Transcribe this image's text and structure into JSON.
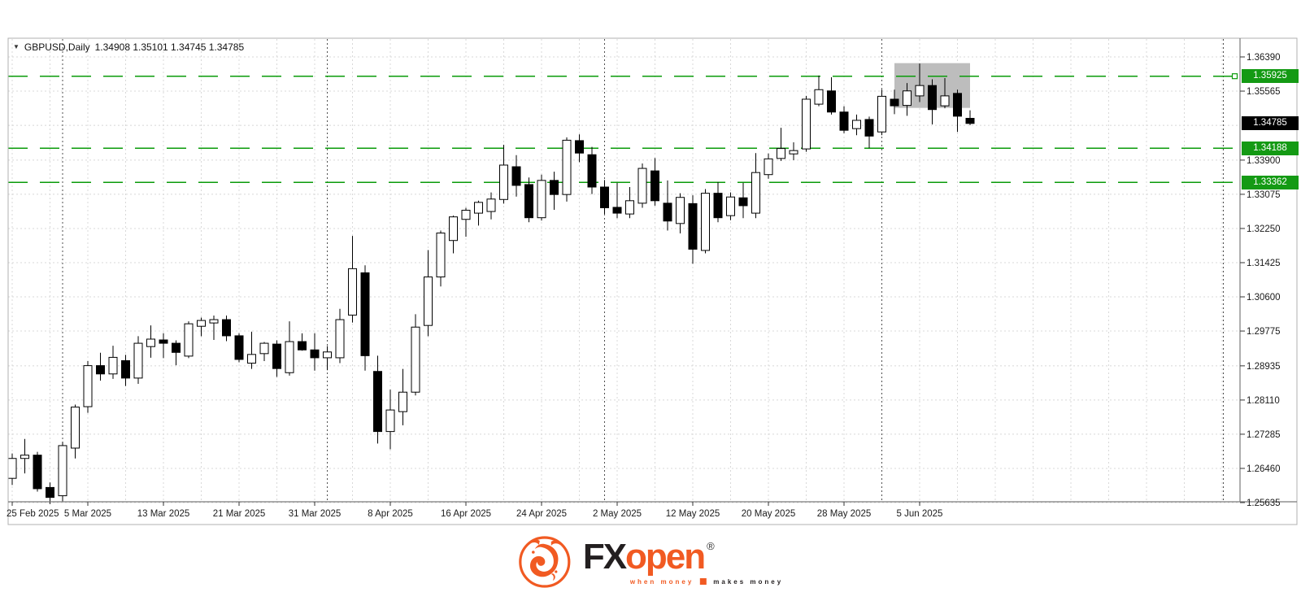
{
  "chart": {
    "collapse_icon": "▼",
    "title_symbol": "GBPUSD,Daily",
    "title_ohlc": "1.34908 1.35101 1.34745 1.34785",
    "price_axis": {
      "ticks": [
        {
          "label": "1.36390",
          "value": 1.3639
        },
        {
          "label": "1.35565",
          "value": 1.35565
        },
        {
          "label": "1.33900",
          "value": 1.339
        },
        {
          "label": "1.33075",
          "value": 1.33075
        },
        {
          "label": "1.32250",
          "value": 1.3225
        },
        {
          "label": "1.31425",
          "value": 1.31425
        },
        {
          "label": "1.30600",
          "value": 1.306
        },
        {
          "label": "1.29775",
          "value": 1.29775
        },
        {
          "label": "1.28935",
          "value": 1.28935
        },
        {
          "label": "1.28110",
          "value": 1.2811
        },
        {
          "label": "1.27285",
          "value": 1.27285
        },
        {
          "label": "1.26460",
          "value": 1.2646
        },
        {
          "label": "1.25635",
          "value": 1.25635
        }
      ],
      "hidden_grid_value": 1.3474
    },
    "date_axis": {
      "ticks": [
        {
          "i": 0,
          "label": "25 Feb 2025"
        },
        {
          "i": 6,
          "label": "5 Mar 2025"
        },
        {
          "i": 12,
          "label": "13 Mar 2025"
        },
        {
          "i": 18,
          "label": "21 Mar 2025"
        },
        {
          "i": 24,
          "label": "31 Mar 2025"
        },
        {
          "i": 30,
          "label": "8 Apr 2025"
        },
        {
          "i": 36,
          "label": "16 Apr 2025"
        },
        {
          "i": 42,
          "label": "24 Apr 2025"
        },
        {
          "i": 48,
          "label": "2 May 2025"
        },
        {
          "i": 54,
          "label": "12 May 2025"
        },
        {
          "i": 60,
          "label": "20 May 2025"
        },
        {
          "i": 66,
          "label": "28 May 2025"
        },
        {
          "i": 72,
          "label": "5 Jun 2025"
        }
      ]
    },
    "levels": [
      {
        "label": "1.35925",
        "value": 1.35925,
        "handle": true
      },
      {
        "label": "1.34188",
        "value": 1.34188,
        "handle": false
      },
      {
        "label": "1.33362",
        "value": 1.33362,
        "handle": false
      }
    ],
    "current_price": {
      "label": "1.34785",
      "value": 1.34785
    },
    "highlight_box": {
      "from_index": 70,
      "to_index": 76,
      "price_top": 1.3624,
      "price_bottom": 1.3516
    },
    "colors": {
      "level_green": "#0a9b0a",
      "badge_green": "#149a14",
      "badge_black": "#000000",
      "grid_light": "#d8d8d8",
      "grid_dark": "#4f4f4f",
      "frame": "#b0b0b0",
      "axis_line": "#7a7a7a",
      "candle_up_fill": "#ffffff",
      "candle_down_fill": "#000000",
      "candle_stroke": "#000000",
      "highlight_gray": "#bdbdbd",
      "text": "#1a1a1a"
    }
  },
  "chart_data": {
    "type": "candlestick",
    "symbol": "GBPUSD",
    "timeframe": "Daily",
    "ohlc_display": {
      "open": "1.34908",
      "high": "1.35101",
      "low": "1.34745",
      "close": "1.34785"
    },
    "y_axis_range": [
      1.25635,
      1.3639
    ],
    "candles": [
      {
        "d": "25 Feb 2025",
        "o": 1.2622,
        "h": 1.2682,
        "l": 1.2606,
        "c": 1.267
      },
      {
        "d": "26 Feb 2025",
        "o": 1.267,
        "h": 1.2717,
        "l": 1.2634,
        "c": 1.2678
      },
      {
        "d": "27 Feb 2025",
        "o": 1.2678,
        "h": 1.2686,
        "l": 1.259,
        "c": 1.2597
      },
      {
        "d": "28 Feb 2025",
        "o": 1.26,
        "h": 1.2612,
        "l": 1.256,
        "c": 1.2576
      },
      {
        "d": "3 Mar 2025",
        "o": 1.258,
        "h": 1.271,
        "l": 1.2565,
        "c": 1.2701
      },
      {
        "d": "4 Mar 2025",
        "o": 1.2695,
        "h": 1.28,
        "l": 1.267,
        "c": 1.2794
      },
      {
        "d": "5 Mar 2025",
        "o": 1.2795,
        "h": 1.2905,
        "l": 1.278,
        "c": 1.2894
      },
      {
        "d": "6 Mar 2025",
        "o": 1.2894,
        "h": 1.2925,
        "l": 1.2858,
        "c": 1.2874
      },
      {
        "d": "7 Mar 2025",
        "o": 1.2874,
        "h": 1.2942,
        "l": 1.2862,
        "c": 1.2914
      },
      {
        "d": "10 Mar 2025",
        "o": 1.2906,
        "h": 1.292,
        "l": 1.2845,
        "c": 1.2864
      },
      {
        "d": "11 Mar 2025",
        "o": 1.2864,
        "h": 1.2965,
        "l": 1.285,
        "c": 1.2948
      },
      {
        "d": "12 Mar 2025",
        "o": 1.294,
        "h": 1.2991,
        "l": 1.2913,
        "c": 1.2958
      },
      {
        "d": "13 Mar 2025",
        "o": 1.2956,
        "h": 1.2972,
        "l": 1.2912,
        "c": 1.2948
      },
      {
        "d": "14 Mar 2025",
        "o": 1.2948,
        "h": 1.2955,
        "l": 1.2895,
        "c": 1.2926
      },
      {
        "d": "17 Mar 2025",
        "o": 1.2917,
        "h": 1.3001,
        "l": 1.2912,
        "c": 1.2995
      },
      {
        "d": "18 Mar 2025",
        "o": 1.2989,
        "h": 1.301,
        "l": 1.2965,
        "c": 1.3003
      },
      {
        "d": "19 Mar 2025",
        "o": 1.2997,
        "h": 1.3015,
        "l": 1.2956,
        "c": 1.3005
      },
      {
        "d": "20 Mar 2025",
        "o": 1.3005,
        "h": 1.3015,
        "l": 1.2953,
        "c": 1.2966
      },
      {
        "d": "21 Mar 2025",
        "o": 1.2966,
        "h": 1.2972,
        "l": 1.2902,
        "c": 1.2909
      },
      {
        "d": "24 Mar 2025",
        "o": 1.29,
        "h": 1.2976,
        "l": 1.2886,
        "c": 1.2921
      },
      {
        "d": "25 Mar 2025",
        "o": 1.2923,
        "h": 1.2951,
        "l": 1.2905,
        "c": 1.2948
      },
      {
        "d": "26 Mar 2025",
        "o": 1.2946,
        "h": 1.2955,
        "l": 1.2867,
        "c": 1.2887
      },
      {
        "d": "27 Mar 2025",
        "o": 1.2877,
        "h": 1.3001,
        "l": 1.287,
        "c": 1.2952
      },
      {
        "d": "28 Mar 2025",
        "o": 1.2952,
        "h": 1.2972,
        "l": 1.293,
        "c": 1.2932
      },
      {
        "d": "31 Mar 2025",
        "o": 1.2932,
        "h": 1.2972,
        "l": 1.2882,
        "c": 1.2913
      },
      {
        "d": "1 Apr 2025",
        "o": 1.2913,
        "h": 1.2941,
        "l": 1.2883,
        "c": 1.2927
      },
      {
        "d": "2 Apr 2025",
        "o": 1.2913,
        "h": 1.3031,
        "l": 1.29,
        "c": 1.3005
      },
      {
        "d": "3 Apr 2025",
        "o": 1.3016,
        "h": 1.3207,
        "l": 1.2998,
        "c": 1.3128
      },
      {
        "d": "4 Apr 2025",
        "o": 1.3118,
        "h": 1.3136,
        "l": 1.2882,
        "c": 1.2918
      },
      {
        "d": "7 Apr 2025",
        "o": 1.288,
        "h": 1.2918,
        "l": 1.2706,
        "c": 1.2735
      },
      {
        "d": "8 Apr 2025",
        "o": 1.2735,
        "h": 1.2836,
        "l": 1.2692,
        "c": 1.2787
      },
      {
        "d": "9 Apr 2025",
        "o": 1.2783,
        "h": 1.2886,
        "l": 1.275,
        "c": 1.283
      },
      {
        "d": "10 Apr 2025",
        "o": 1.283,
        "h": 1.3018,
        "l": 1.2822,
        "c": 1.2987
      },
      {
        "d": "11 Apr 2025",
        "o": 1.2991,
        "h": 1.3173,
        "l": 1.2965,
        "c": 1.3108
      },
      {
        "d": "14 Apr 2025",
        "o": 1.3108,
        "h": 1.322,
        "l": 1.3085,
        "c": 1.3214
      },
      {
        "d": "15 Apr 2025",
        "o": 1.3196,
        "h": 1.3256,
        "l": 1.3165,
        "c": 1.3253
      },
      {
        "d": "16 Apr 2025",
        "o": 1.3247,
        "h": 1.3275,
        "l": 1.3205,
        "c": 1.3269
      },
      {
        "d": "17 Apr 2025",
        "o": 1.3262,
        "h": 1.3292,
        "l": 1.3232,
        "c": 1.3288
      },
      {
        "d": "18 Apr 2025",
        "o": 1.3266,
        "h": 1.3312,
        "l": 1.3247,
        "c": 1.3296
      },
      {
        "d": "21 Apr 2025",
        "o": 1.3295,
        "h": 1.3427,
        "l": 1.3285,
        "c": 1.3378
      },
      {
        "d": "22 Apr 2025",
        "o": 1.3374,
        "h": 1.3402,
        "l": 1.3302,
        "c": 1.3329
      },
      {
        "d": "23 Apr 2025",
        "o": 1.3331,
        "h": 1.3348,
        "l": 1.324,
        "c": 1.3251
      },
      {
        "d": "24 Apr 2025",
        "o": 1.3251,
        "h": 1.3355,
        "l": 1.3244,
        "c": 1.3341
      },
      {
        "d": "25 Apr 2025",
        "o": 1.3341,
        "h": 1.3362,
        "l": 1.327,
        "c": 1.3307
      },
      {
        "d": "28 Apr 2025",
        "o": 1.3307,
        "h": 1.3445,
        "l": 1.329,
        "c": 1.3438
      },
      {
        "d": "29 Apr 2025",
        "o": 1.3437,
        "h": 1.3452,
        "l": 1.3385,
        "c": 1.3407
      },
      {
        "d": "30 Apr 2025",
        "o": 1.3403,
        "h": 1.3422,
        "l": 1.3308,
        "c": 1.3325
      },
      {
        "d": "1 May 2025",
        "o": 1.3325,
        "h": 1.3342,
        "l": 1.326,
        "c": 1.3275
      },
      {
        "d": "2 May 2025",
        "o": 1.3276,
        "h": 1.3335,
        "l": 1.325,
        "c": 1.3262
      },
      {
        "d": "5 May 2025",
        "o": 1.326,
        "h": 1.3325,
        "l": 1.325,
        "c": 1.3292
      },
      {
        "d": "6 May 2025",
        "o": 1.3286,
        "h": 1.3382,
        "l": 1.3275,
        "c": 1.337
      },
      {
        "d": "7 May 2025",
        "o": 1.3364,
        "h": 1.3395,
        "l": 1.328,
        "c": 1.3292
      },
      {
        "d": "8 May 2025",
        "o": 1.3286,
        "h": 1.3341,
        "l": 1.322,
        "c": 1.3243
      },
      {
        "d": "9 May 2025",
        "o": 1.3237,
        "h": 1.331,
        "l": 1.3213,
        "c": 1.33
      },
      {
        "d": "12 May 2025",
        "o": 1.3285,
        "h": 1.3305,
        "l": 1.314,
        "c": 1.3175
      },
      {
        "d": "13 May 2025",
        "o": 1.3172,
        "h": 1.332,
        "l": 1.3165,
        "c": 1.331
      },
      {
        "d": "14 May 2025",
        "o": 1.331,
        "h": 1.3337,
        "l": 1.324,
        "c": 1.3251
      },
      {
        "d": "15 May 2025",
        "o": 1.3256,
        "h": 1.3312,
        "l": 1.3245,
        "c": 1.3301
      },
      {
        "d": "16 May 2025",
        "o": 1.3299,
        "h": 1.3335,
        "l": 1.325,
        "c": 1.328
      },
      {
        "d": "19 May 2025",
        "o": 1.3262,
        "h": 1.3407,
        "l": 1.325,
        "c": 1.336
      },
      {
        "d": "20 May 2025",
        "o": 1.3355,
        "h": 1.3406,
        "l": 1.3345,
        "c": 1.3393
      },
      {
        "d": "21 May 2025",
        "o": 1.3394,
        "h": 1.3468,
        "l": 1.3388,
        "c": 1.3418
      },
      {
        "d": "22 May 2025",
        "o": 1.3405,
        "h": 1.3433,
        "l": 1.339,
        "c": 1.3413
      },
      {
        "d": "23 May 2025",
        "o": 1.3417,
        "h": 1.3545,
        "l": 1.341,
        "c": 1.3537
      },
      {
        "d": "26 May 2025",
        "o": 1.3525,
        "h": 1.3594,
        "l": 1.352,
        "c": 1.356
      },
      {
        "d": "27 May 2025",
        "o": 1.3557,
        "h": 1.359,
        "l": 1.35,
        "c": 1.3506
      },
      {
        "d": "28 May 2025",
        "o": 1.3506,
        "h": 1.352,
        "l": 1.3455,
        "c": 1.3462
      },
      {
        "d": "29 May 2025",
        "o": 1.3466,
        "h": 1.35,
        "l": 1.345,
        "c": 1.3486
      },
      {
        "d": "30 May 2025",
        "o": 1.3488,
        "h": 1.3495,
        "l": 1.3419,
        "c": 1.3448
      },
      {
        "d": "2 Jun 2025",
        "o": 1.3458,
        "h": 1.356,
        "l": 1.345,
        "c": 1.3544
      },
      {
        "d": "3 Jun 2025",
        "o": 1.3537,
        "h": 1.356,
        "l": 1.3501,
        "c": 1.3521
      },
      {
        "d": "4 Jun 2025",
        "o": 1.3522,
        "h": 1.3576,
        "l": 1.3497,
        "c": 1.3557
      },
      {
        "d": "5 Jun 2025",
        "o": 1.3545,
        "h": 1.3623,
        "l": 1.353,
        "c": 1.357
      },
      {
        "d": "6 Jun 2025",
        "o": 1.357,
        "h": 1.3585,
        "l": 1.3476,
        "c": 1.3512
      },
      {
        "d": "9 Jun 2025",
        "o": 1.3521,
        "h": 1.3588,
        "l": 1.3515,
        "c": 1.3545
      },
      {
        "d": "10 Jun 2025",
        "o": 1.3551,
        "h": 1.356,
        "l": 1.3458,
        "c": 1.3496
      },
      {
        "d": "11 Jun 2025",
        "o": 1.34908,
        "h": 1.35101,
        "l": 1.34745,
        "c": 1.34785
      }
    ]
  },
  "logo": {
    "brand_fx": "FX",
    "brand_open": "open",
    "registered": "®",
    "tagline_left": "when money",
    "tagline_right": "makes money",
    "orange": "#f15a22"
  }
}
